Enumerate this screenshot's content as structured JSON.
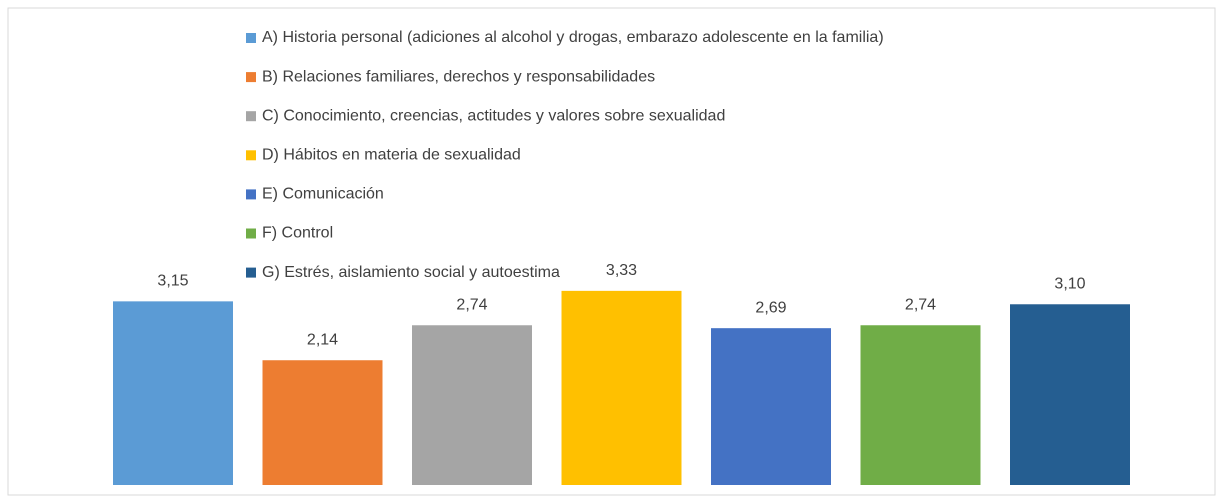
{
  "chart_data": {
    "type": "bar",
    "series": [
      {
        "name": "A) Historia personal (adiciones al alcohol y drogas, embarazo adolescente en la familia)",
        "color": "#5b9bd5",
        "values": [
          3.15
        ],
        "value_labels": [
          "3,15"
        ]
      },
      {
        "name": "B) Relaciones familiares, derechos y responsabilidades",
        "color": "#ed7d31",
        "values": [
          2.14
        ],
        "value_labels": [
          "2,14"
        ]
      },
      {
        "name": "C) Conocimiento, creencias, actitudes y valores sobre sexualidad",
        "color": "#a5a5a5",
        "values": [
          2.74
        ],
        "value_labels": [
          "2,74"
        ]
      },
      {
        "name": "D) Hábitos en materia de sexualidad",
        "color": "#ffc000",
        "values": [
          3.33
        ],
        "value_labels": [
          "3,33"
        ]
      },
      {
        "name": "E) Comunicación",
        "color": "#4472c4",
        "values": [
          2.69
        ],
        "value_labels": [
          "2,69"
        ]
      },
      {
        "name": "F) Control",
        "color": "#70ad47",
        "values": [
          2.74
        ],
        "value_labels": [
          "2,74"
        ]
      },
      {
        "name": "G) Estrés, aislamiento social y autoestima",
        "color": "#255e91",
        "values": [
          3.1
        ],
        "value_labels": [
          "3,10"
        ]
      }
    ]
  }
}
